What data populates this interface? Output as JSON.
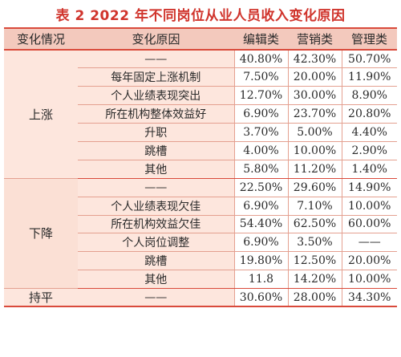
{
  "title": "表 2 2022 年不同岗位从业人员收入变化原因",
  "header": [
    "变化情况",
    "变化原因",
    "编辑类",
    "营销类",
    "管理类"
  ],
  "groups": [
    {
      "label": "上涨",
      "rows": [
        [
          "——",
          "40.80%",
          "42.30%",
          "50.70%"
        ],
        [
          "每年固定上涨机制",
          "7.50%",
          "20.00%",
          "11.90%"
        ],
        [
          "个人业绩表现突出",
          "12.70%",
          "30.00%",
          "8.90%"
        ],
        [
          "所在机构整体效益好",
          "6.90%",
          "23.70%",
          "20.80%"
        ],
        [
          "升职",
          "3.70%",
          "5.00%",
          "4.40%"
        ],
        [
          "跳槽",
          "4.00%",
          "10.00%",
          "2.90%"
        ],
        [
          "其他",
          "5.80%",
          "11.20%",
          "1.40%"
        ]
      ]
    },
    {
      "label": "下降",
      "rows": [
        [
          "——",
          "22.50%",
          "29.60%",
          "14.90%"
        ],
        [
          "个人业绩表现欠佳",
          "6.90%",
          "7.10%",
          "10.00%"
        ],
        [
          "所在机构效益欠佳",
          "54.40%",
          "62.50%",
          "60.00%"
        ],
        [
          "个人岗位调整",
          "6.90%",
          "3.50%",
          "——"
        ],
        [
          "跳槽",
          "19.80%",
          "12.50%",
          "20.00%"
        ],
        [
          "其他",
          "11.8",
          "14.20%",
          "10.00%"
        ]
      ]
    },
    {
      "label": "持平",
      "rows": [
        [
          "——",
          "30.60%",
          "28.00%",
          "34.30%"
        ]
      ]
    }
  ]
}
